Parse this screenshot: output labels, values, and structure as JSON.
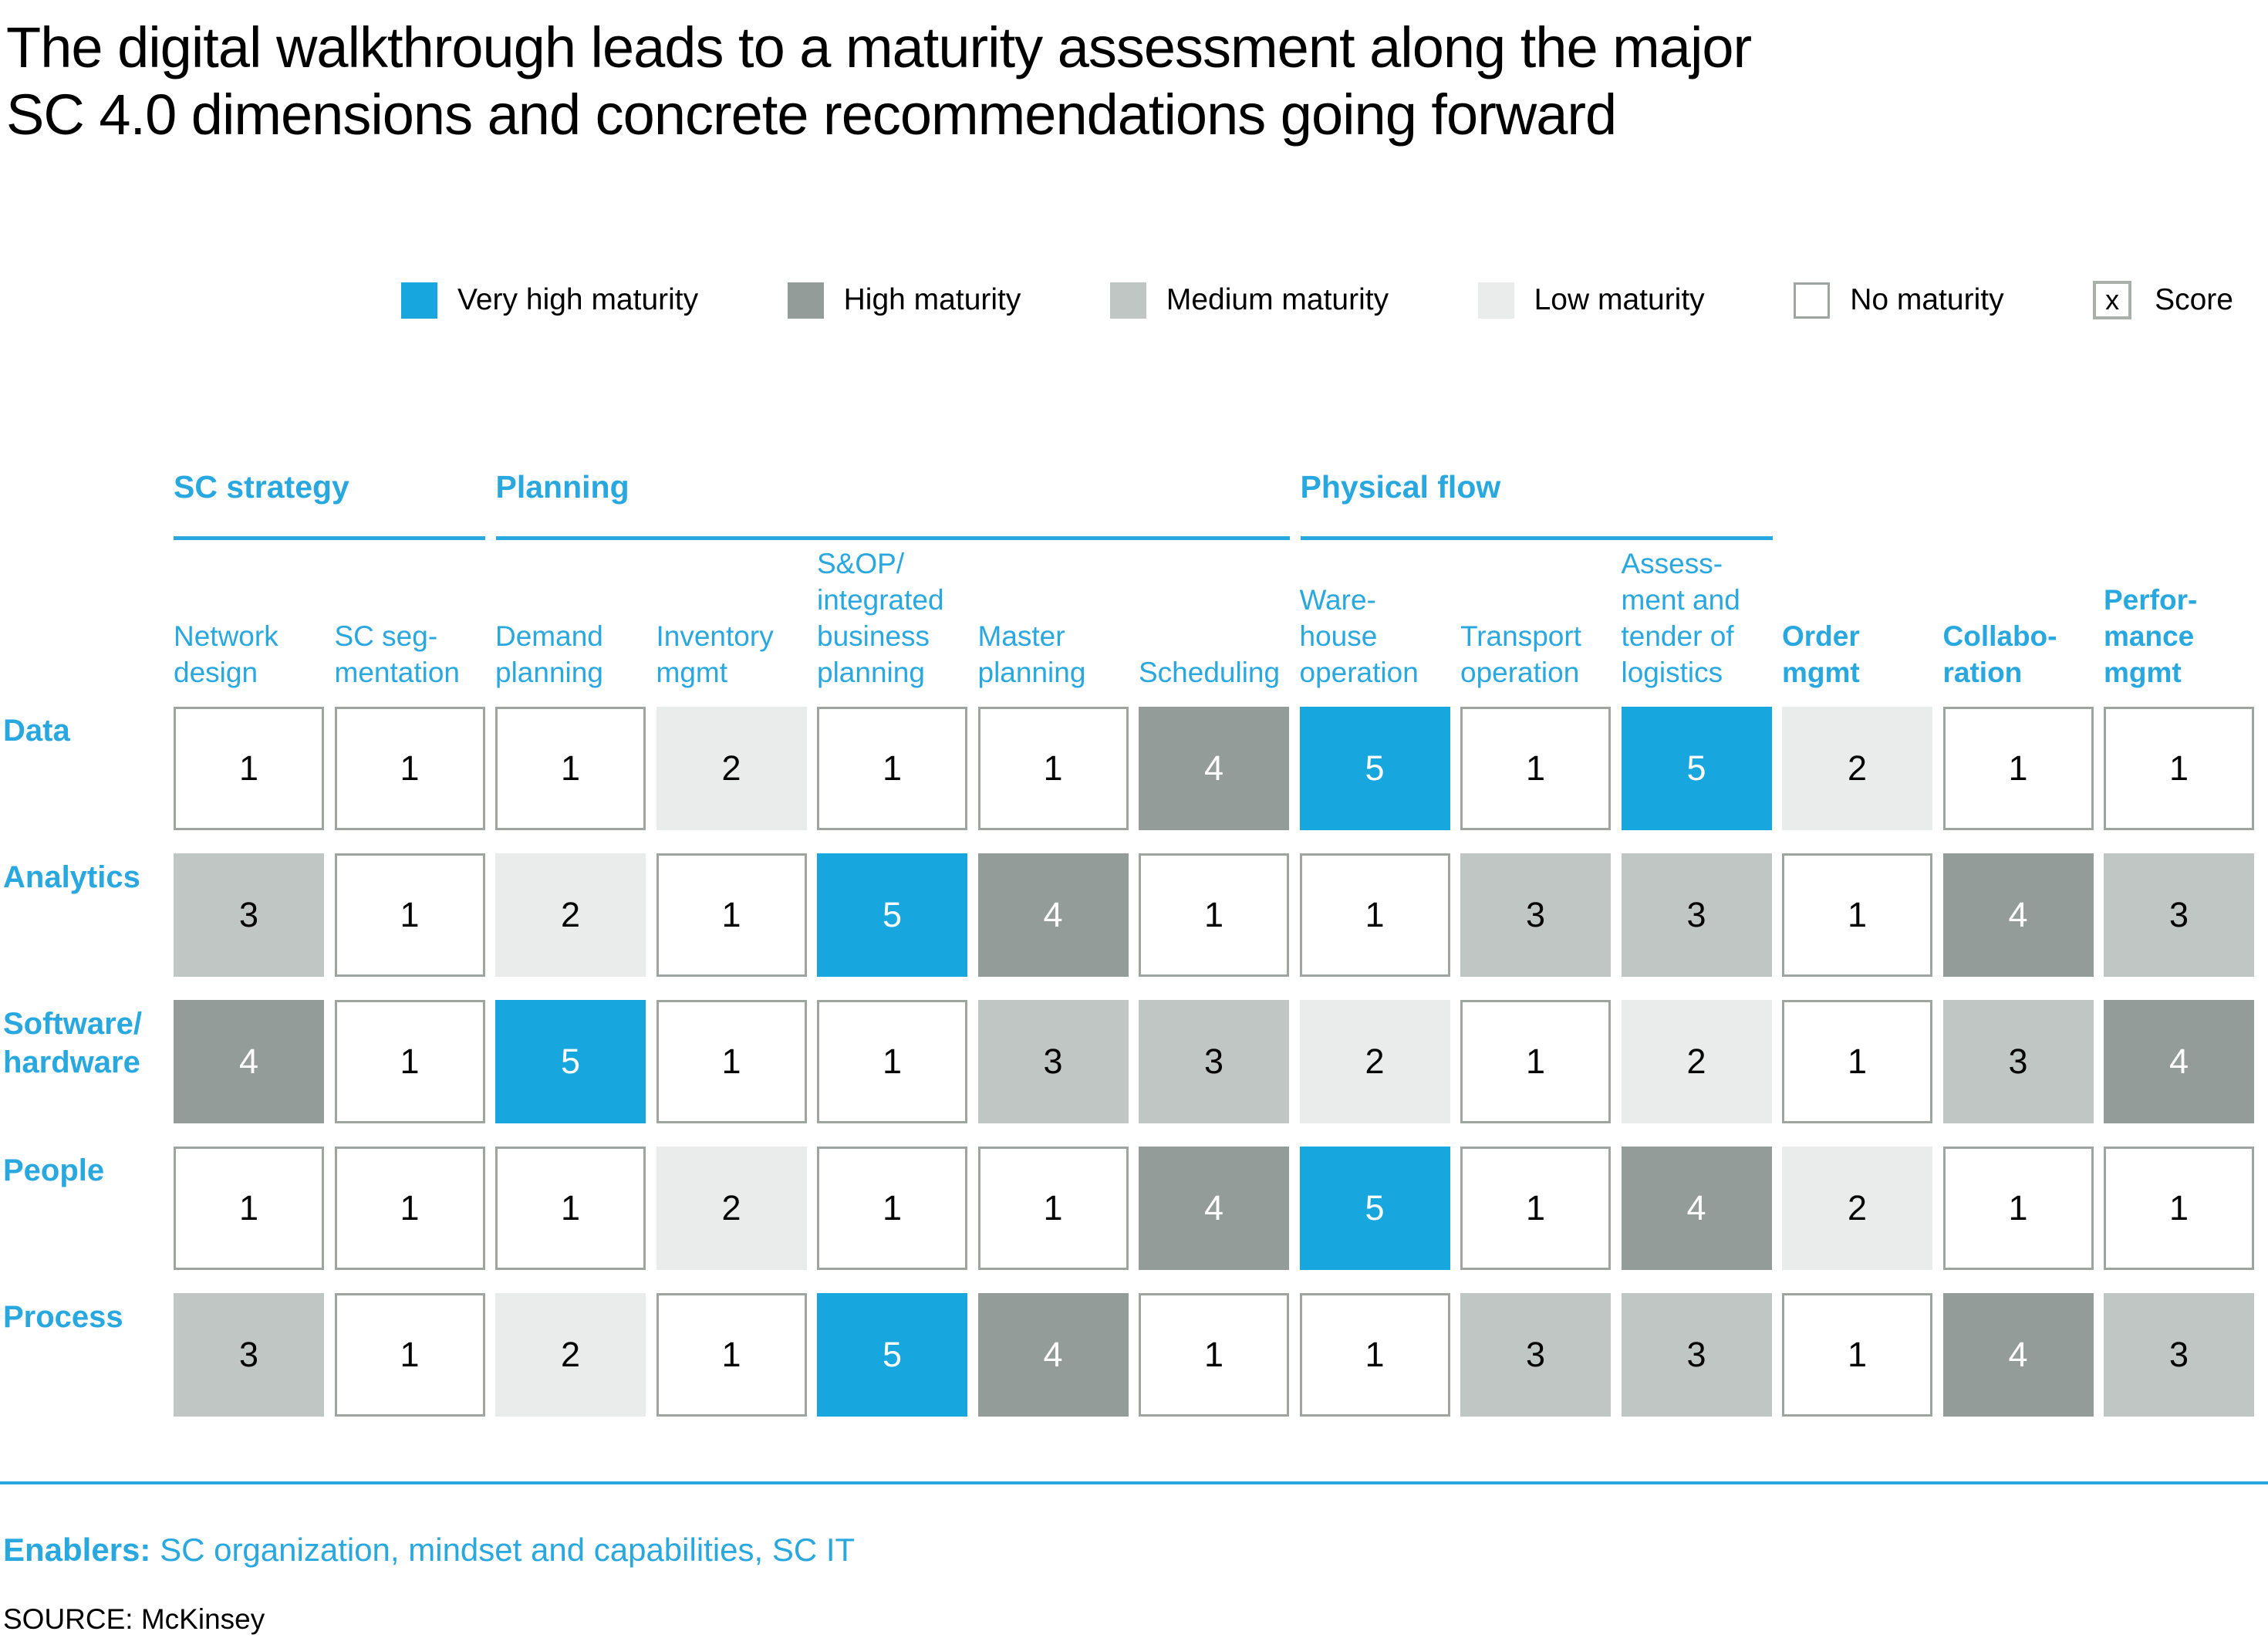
{
  "title": "The digital walkthrough leads to a maturity assessment along the major\nSC 4.0 dimensions and concrete recommendations going forward",
  "colors": {
    "accent_blue": "#29a8e0",
    "very_high": "#17a7de",
    "high": "#949c99",
    "medium": "#bfc6c3",
    "low": "#e9eceb",
    "none_border": "#9ea5a1"
  },
  "legend": {
    "items": [
      {
        "label": "Very high maturity",
        "level": "veryhigh"
      },
      {
        "label": "High maturity",
        "level": "high"
      },
      {
        "label": "Medium maturity",
        "level": "medium"
      },
      {
        "label": "Low maturity",
        "level": "low"
      },
      {
        "label": "No maturity",
        "level": "none"
      }
    ],
    "score": {
      "symbol": "x",
      "label": "Score"
    }
  },
  "matrix": {
    "row_labels": [
      "Data",
      "Analytics",
      "Software/\nhardware",
      "People",
      "Process"
    ],
    "col_labels": [
      {
        "label": "Network\ndesign",
        "bold": false
      },
      {
        "label": "SC seg-\nmentation",
        "bold": false
      },
      {
        "label": "Demand\nplanning",
        "bold": false
      },
      {
        "label": "Inventory\nmgmt",
        "bold": false
      },
      {
        "label": "S&OP/\nintegrated\nbusiness\nplanning",
        "bold": false
      },
      {
        "label": "Master\nplanning",
        "bold": false
      },
      {
        "label": "Scheduling",
        "bold": false
      },
      {
        "label": "Ware-\nhouse\noperation",
        "bold": false
      },
      {
        "label": "Transport\noperation",
        "bold": false
      },
      {
        "label": "Assess-\nment and\ntender of\nlogistics",
        "bold": false
      },
      {
        "label": "Order\nmgmt",
        "bold": true
      },
      {
        "label": "Collabo-\nration",
        "bold": true
      },
      {
        "label": "Perfor-\nmance\nmgmt",
        "bold": true
      }
    ],
    "groups": [
      {
        "label": "SC strategy",
        "span": 2
      },
      {
        "label": "Planning",
        "span": 5
      },
      {
        "label": "Physical flow",
        "span": 3
      }
    ],
    "value_to_level": {
      "1": "none",
      "2": "low",
      "3": "medium",
      "4": "high",
      "5": "veryhigh"
    }
  },
  "chart_data": {
    "type": "heatmap",
    "title": "SC 4.0 maturity assessment matrix",
    "rows": [
      "Data",
      "Analytics",
      "Software/hardware",
      "People",
      "Process"
    ],
    "columns": [
      "Network design",
      "SC segmentation",
      "Demand planning",
      "Inventory mgmt",
      "S&OP/integrated business planning",
      "Master planning",
      "Scheduling",
      "Warehouse operation",
      "Transport operation",
      "Assessment and tender of logistics",
      "Order mgmt",
      "Collaboration",
      "Performance mgmt"
    ],
    "column_groups": [
      {
        "label": "SC strategy",
        "column_indexes": [
          0,
          1
        ]
      },
      {
        "label": "Planning",
        "column_indexes": [
          2,
          3,
          4,
          5,
          6
        ]
      },
      {
        "label": "Physical flow",
        "column_indexes": [
          7,
          8,
          9
        ]
      }
    ],
    "values": [
      [
        1,
        1,
        1,
        2,
        1,
        1,
        4,
        5,
        1,
        5,
        2,
        1,
        1
      ],
      [
        3,
        1,
        2,
        1,
        5,
        4,
        1,
        1,
        3,
        3,
        1,
        4,
        3
      ],
      [
        4,
        1,
        5,
        1,
        1,
        3,
        3,
        2,
        1,
        2,
        1,
        3,
        4
      ],
      [
        1,
        1,
        1,
        2,
        1,
        1,
        4,
        5,
        1,
        4,
        2,
        1,
        1
      ],
      [
        3,
        1,
        2,
        1,
        5,
        4,
        1,
        1,
        3,
        3,
        1,
        4,
        3
      ]
    ],
    "scale": {
      "1": "No maturity",
      "2": "Low maturity",
      "3": "Medium maturity",
      "4": "High maturity",
      "5": "Very high maturity"
    }
  },
  "enablers": {
    "label": "Enablers:",
    "text": " SC organization, mindset and capabilities, SC IT"
  },
  "source": "SOURCE: McKinsey"
}
